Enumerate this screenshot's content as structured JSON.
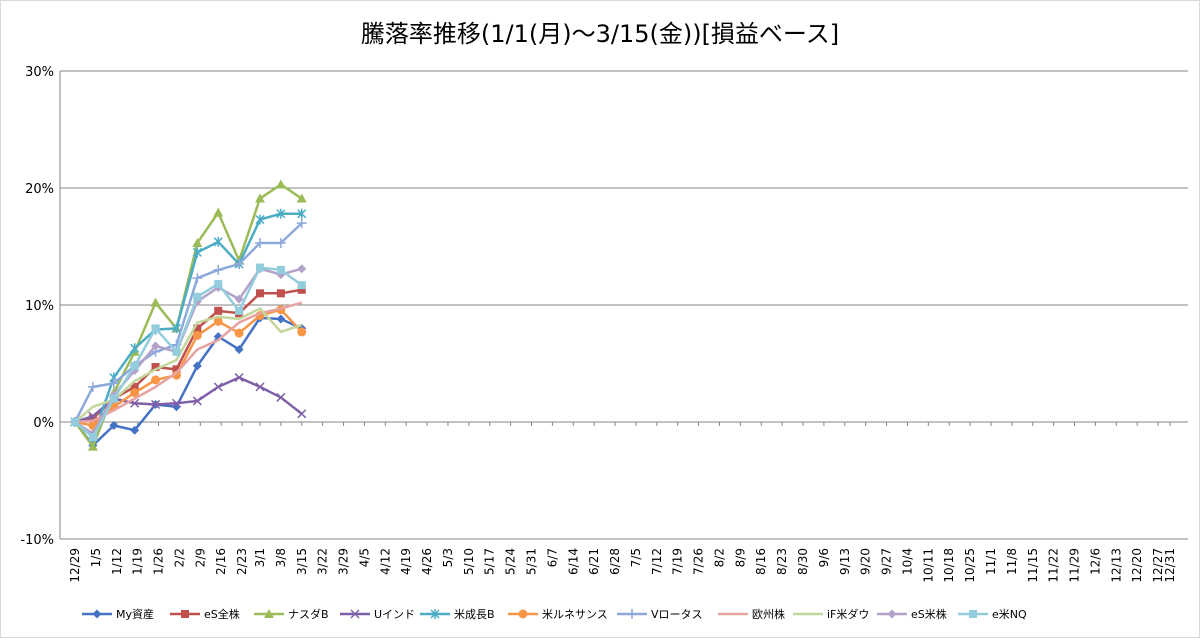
{
  "chart_data": {
    "type": "line",
    "title": "騰落率推移(1/1(月)～3/15(金))[損益ベース]",
    "xlabel": "",
    "ylabel": "",
    "ylim": [
      -10,
      30
    ],
    "yticks": [
      -10,
      0,
      10,
      20,
      30
    ],
    "ytick_labels": [
      "-10%",
      "0%",
      "10%",
      "20%",
      "30%"
    ],
    "grid": true,
    "legend_position": "bottom",
    "categories": [
      "12/29",
      "1/5",
      "1/12",
      "1/19",
      "1/26",
      "2/2",
      "2/9",
      "2/16",
      "2/23",
      "3/1",
      "3/8",
      "3/15",
      "3/22",
      "3/29",
      "4/5",
      "4/12",
      "4/19",
      "4/26",
      "5/3",
      "5/10",
      "5/17",
      "5/24",
      "5/31",
      "6/7",
      "6/14",
      "6/21",
      "6/28",
      "7/5",
      "7/12",
      "7/19",
      "7/26",
      "8/2",
      "8/9",
      "8/16",
      "8/23",
      "8/30",
      "9/6",
      "9/13",
      "9/20",
      "9/27",
      "10/4",
      "10/11",
      "10/18",
      "10/25",
      "11/1",
      "11/8",
      "11/15",
      "11/22",
      "11/29",
      "12/6",
      "12/13",
      "12/20",
      "12/27",
      "12/31"
    ],
    "x": [
      "12/29",
      "1/4",
      "1/11",
      "1/18",
      "1/25",
      "2/1",
      "2/8",
      "2/15",
      "2/22",
      "3/1",
      "3/8",
      "3/15"
    ],
    "series": [
      {
        "name": "My資産",
        "color": "#4472C4",
        "marker": "diamond",
        "values": [
          0,
          -2.0,
          -0.3,
          -0.7,
          1.5,
          1.3,
          4.8,
          7.3,
          6.2,
          8.9,
          8.8,
          8.0
        ]
      },
      {
        "name": "eS全株",
        "color": "#C0504D",
        "marker": "square",
        "values": [
          0,
          0.3,
          2.0,
          3.0,
          4.7,
          4.5,
          8.0,
          9.5,
          9.3,
          11.0,
          11.0,
          11.3
        ]
      },
      {
        "name": "ナスダB",
        "color": "#9BBB59",
        "marker": "triangle",
        "values": [
          0,
          -2.1,
          2.5,
          6.0,
          10.2,
          8.0,
          15.3,
          17.9,
          13.8,
          19.1,
          20.3,
          19.1
        ]
      },
      {
        "name": "Uインド",
        "color": "#7F60A8",
        "marker": "x",
        "values": [
          0,
          0.5,
          2.0,
          1.6,
          1.5,
          1.6,
          1.8,
          3.0,
          3.8,
          3.0,
          2.1,
          0.7
        ]
      },
      {
        "name": "米成長B",
        "color": "#4BACC6",
        "marker": "star",
        "values": [
          0,
          -1.3,
          3.8,
          6.3,
          7.9,
          8.0,
          14.5,
          15.4,
          13.5,
          17.3,
          17.8,
          17.8
        ]
      },
      {
        "name": "米ルネサンス",
        "color": "#F79646",
        "marker": "circle",
        "values": [
          0,
          -0.3,
          1.3,
          2.5,
          3.6,
          4.0,
          7.4,
          8.6,
          7.6,
          9.1,
          9.6,
          7.7
        ]
      },
      {
        "name": "Vロータス",
        "color": "#8DA9DB",
        "marker": "plus",
        "values": [
          0,
          3.0,
          3.3,
          4.8,
          6.0,
          6.6,
          12.3,
          13.0,
          13.5,
          15.3,
          15.3,
          17.0
        ]
      },
      {
        "name": "欧州株",
        "color": "#E6A3A1",
        "marker": "none",
        "values": [
          0,
          0.1,
          1.0,
          2.0,
          3.0,
          4.2,
          6.2,
          7.0,
          8.5,
          9.3,
          9.7,
          10.2
        ]
      },
      {
        "name": "iF米ダウ",
        "color": "#C3D69B",
        "marker": "none",
        "values": [
          0,
          1.3,
          1.9,
          3.5,
          4.5,
          5.3,
          8.5,
          9.0,
          8.8,
          9.7,
          7.7,
          8.3
        ]
      },
      {
        "name": "eS米株",
        "color": "#B3A2C7",
        "marker": "diamond",
        "values": [
          0,
          -1.0,
          2.3,
          4.4,
          6.5,
          6.0,
          10.3,
          11.5,
          10.5,
          13.1,
          12.6,
          13.1
        ]
      },
      {
        "name": "e米NQ",
        "color": "#93CDDD",
        "marker": "square",
        "values": [
          0,
          -1.3,
          2.0,
          4.8,
          8.0,
          6.0,
          10.7,
          11.8,
          9.5,
          13.2,
          13.0,
          11.7
        ]
      }
    ]
  }
}
